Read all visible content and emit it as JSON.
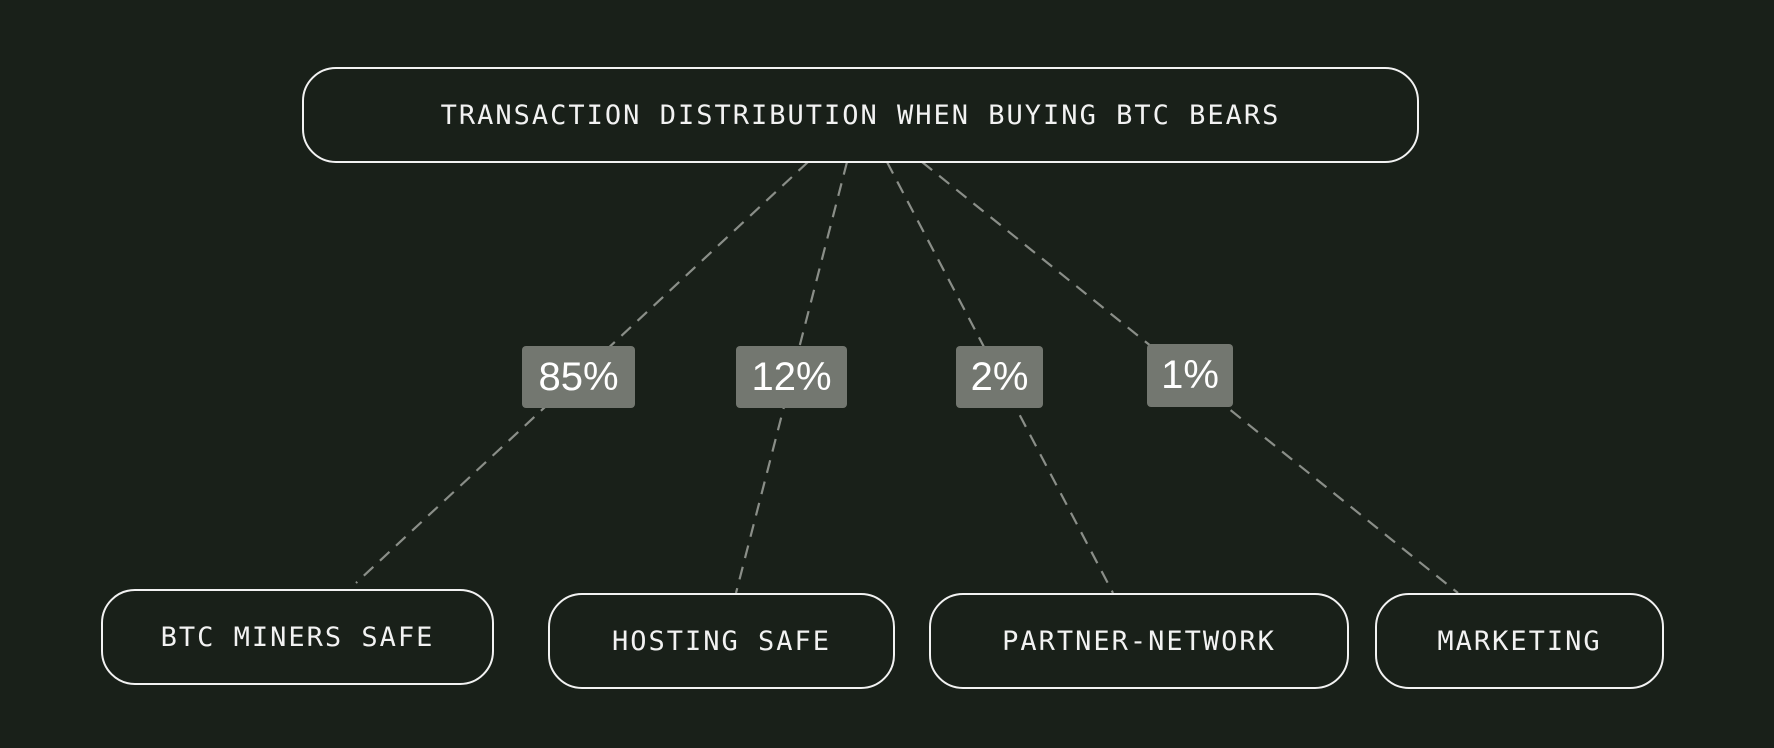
{
  "title": "TRANSACTION DISTRIBUTION WHEN BUYING BTC BEARS",
  "branches": [
    {
      "label": "BTC MINERS SAFE",
      "percent": "85%"
    },
    {
      "label": "HOSTING SAFE",
      "percent": "12%"
    },
    {
      "label": "PARTNER-NETWORK",
      "percent": "2%"
    },
    {
      "label": "MARKETING",
      "percent": "1%"
    }
  ],
  "colors": {
    "background": "#192019",
    "node_border": "#f2f2f2",
    "connector": "#8a8e88",
    "label_box": "#737770"
  }
}
